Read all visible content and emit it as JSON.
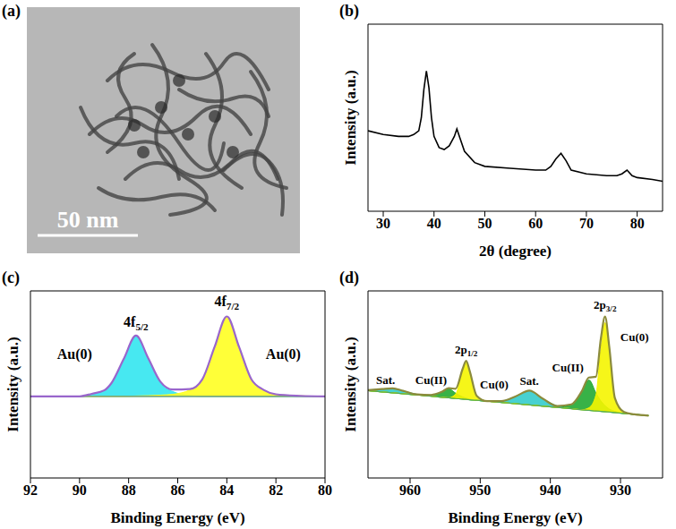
{
  "chart_data": [
    {
      "type": "image",
      "panel": "(a)",
      "annotations": [
        {
          "text": "50 nm"
        }
      ]
    },
    {
      "type": "line",
      "panel": "(b)",
      "x_label": "2θ (degree)",
      "y_label": "Intensity (a.u.)",
      "x": [
        27,
        30,
        33,
        35,
        36,
        37,
        37.5,
        38,
        38.5,
        39,
        39.5,
        40,
        41,
        42,
        43,
        44,
        44.5,
        45,
        46,
        48,
        50,
        55,
        60,
        62,
        63,
        64,
        65,
        66,
        67,
        70,
        74,
        76,
        77,
        78,
        79,
        80,
        83,
        85
      ],
      "values": [
        43,
        41,
        40,
        40,
        41,
        43,
        50,
        65,
        75,
        66,
        50,
        40,
        34,
        33,
        35,
        40,
        44,
        40,
        32,
        26,
        24,
        23,
        22,
        22,
        24,
        28,
        31,
        27,
        22,
        20,
        19,
        19,
        20,
        22,
        19,
        18,
        17,
        16
      ],
      "color": "#000000",
      "xlim": [
        27,
        85
      ],
      "xticks": [
        30,
        40,
        50,
        60,
        70,
        80
      ],
      "ylim": [
        0,
        100
      ],
      "tick_labels": "x"
    },
    {
      "type": "area",
      "panel": "(c)",
      "x_label": "Binding Energy (eV)",
      "y_label": "Intensity (a.u.)",
      "x": [
        92,
        91,
        90,
        89.5,
        89,
        88.7,
        88.2,
        87.7,
        87.2,
        86.7,
        86.2,
        85.5,
        85,
        84.5,
        84,
        83.5,
        83,
        82.5,
        82,
        81,
        80
      ],
      "background": {
        "color": "#5a8a8a",
        "values": [
          48,
          48,
          48,
          48,
          48,
          48,
          48,
          48,
          48,
          48,
          48,
          48,
          48,
          48,
          48,
          48,
          48,
          48,
          48,
          48,
          48
        ]
      },
      "series": [
        {
          "type": "area",
          "color": "#33e6f0",
          "values": [
            48,
            48,
            48,
            49.5,
            51.5,
            55.8,
            70,
            83.5,
            70,
            55.8,
            50.8,
            48.5,
            48,
            48,
            48,
            48,
            48,
            48,
            48,
            48,
            48
          ]
        },
        {
          "type": "area",
          "color": "#ffff22",
          "values": [
            48,
            48,
            48,
            48,
            48,
            48,
            48,
            48.2,
            48.4,
            48.7,
            49.2,
            51.8,
            58,
            77,
            95,
            77,
            58,
            51.8,
            49.2,
            48.3,
            48
          ]
        },
        {
          "type": "line",
          "color": "#9966cc",
          "values": [
            48,
            48,
            48,
            49.5,
            51.5,
            55.8,
            70,
            83.7,
            70.4,
            56.5,
            52,
            52.3,
            58,
            77,
            95,
            77,
            58,
            51.8,
            49.2,
            48.3,
            48
          ]
        }
      ],
      "annotations": [
        {
          "text": "4f5/2",
          "x": 87.7,
          "y": 89
        },
        {
          "text": "4f7/2",
          "x": 84,
          "y": 101
        },
        {
          "text": "Au(0)",
          "x": 90.2,
          "y": 70
        },
        {
          "text": "Au(0)",
          "x": 81.7,
          "y": 70
        }
      ],
      "xlim": [
        92,
        80
      ],
      "xticks": [
        92,
        90,
        88,
        86,
        84,
        82,
        80
      ],
      "ylim": [
        0,
        110
      ],
      "tick_labels": "x"
    },
    {
      "type": "area",
      "panel": "(d)",
      "x_label": "Binding Energy (eV)",
      "y_label": "Intensity (a.u.)",
      "x": [
        966,
        964,
        962.5,
        961,
        959,
        957,
        955.5,
        954.5,
        953.5,
        952.5,
        952,
        951.5,
        950.5,
        949,
        947,
        945,
        943,
        941,
        939,
        937,
        935.5,
        934.5,
        933.5,
        932.8,
        932.2,
        931.6,
        930.8,
        929.5,
        928,
        926
      ],
      "background": {
        "color": "#55aa55",
        "values": [
          49,
          48.3,
          47.8,
          47.3,
          46.6,
          45.9,
          45.3,
          45,
          44.6,
          44.3,
          44.1,
          43.9,
          43.6,
          43.1,
          42.4,
          41.7,
          41,
          40.3,
          39.6,
          38.9,
          38.3,
          38,
          37.6,
          37.4,
          37.2,
          37,
          36.7,
          36.2,
          35.7,
          35
        ]
      },
      "series": [
        {
          "type": "area",
          "color": "#33cccc",
          "values": [
            49.3,
            49.9,
            50.3,
            48.9,
            46.9,
            45.9,
            45.3,
            45,
            44.6,
            44.3,
            44.1,
            43.9,
            43.6,
            43.1,
            43.2,
            45.7,
            49,
            44.3,
            40.4,
            38.9,
            38.3,
            38,
            37.6,
            37.4,
            37.2,
            37,
            36.7,
            36.2,
            35.7,
            35
          ]
        },
        {
          "type": "area",
          "color": "#22aa33",
          "values": [
            49,
            48.3,
            47.8,
            47.3,
            46.6,
            46.6,
            48.3,
            50,
            47.6,
            45.5,
            44.8,
            44.3,
            43.6,
            43.1,
            42.4,
            41.7,
            41,
            40.3,
            39.6,
            41.3,
            48.5,
            55,
            47.8,
            43.2,
            40.6,
            38.7,
            37.4,
            36.2,
            35.7,
            35
          ]
        },
        {
          "type": "area",
          "color": "#f5f500",
          "values": [
            49,
            48.3,
            47.8,
            47.3,
            46.6,
            45.9,
            45.3,
            45,
            47.1,
            60.1,
            65.1,
            59.7,
            46.1,
            43.1,
            42.4,
            41.7,
            41,
            40.3,
            39.6,
            38.9,
            38.3,
            39.4,
            46.6,
            72.4,
            87.2,
            72,
            44.2,
            37,
            35.7,
            35
          ]
        },
        {
          "type": "line",
          "color": "#8b8b3c",
          "values": [
            49.3,
            49.9,
            50.3,
            48.9,
            46.9,
            46.6,
            48.3,
            50.4,
            50.1,
            61.3,
            65.8,
            60.1,
            46.1,
            43.1,
            43.2,
            45.7,
            49,
            44.3,
            40.4,
            41.3,
            48.8,
            56.4,
            56.8,
            78.2,
            90.6,
            73.7,
            44.9,
            37,
            35.7,
            35
          ]
        }
      ],
      "annotations": [
        {
          "text": "2p3/2",
          "x": 932.2,
          "y": 95
        },
        {
          "text": "Cu(0)",
          "x": 928,
          "y": 77
        },
        {
          "text": "Cu(II)",
          "x": 937.5,
          "y": 60
        },
        {
          "text": "Sat.",
          "x": 943,
          "y": 52.5
        },
        {
          "text": "2p1/2",
          "x": 952,
          "y": 70
        },
        {
          "text": "Cu(0)",
          "x": 948,
          "y": 50
        },
        {
          "text": "Cu(II)",
          "x": 957,
          "y": 53
        },
        {
          "text": "Sat.",
          "x": 963.5,
          "y": 53
        }
      ],
      "xlim": [
        966,
        924
      ],
      "xticks": [
        960,
        950,
        940,
        930
      ],
      "ylim": [
        0,
        105
      ],
      "tick_labels": "x"
    }
  ]
}
